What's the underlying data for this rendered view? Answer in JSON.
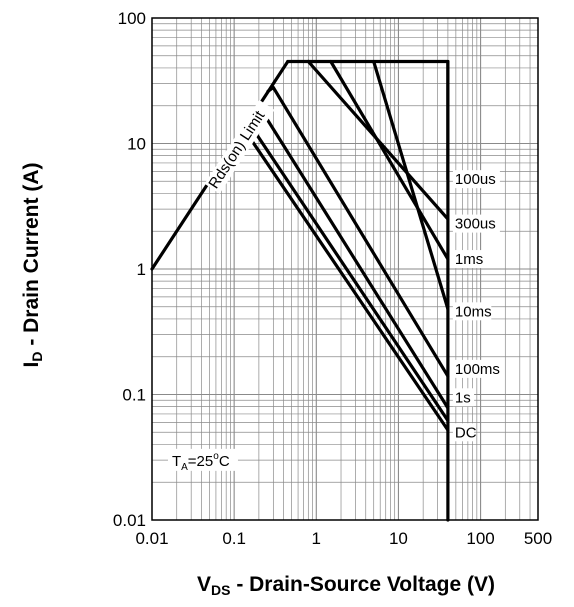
{
  "chart_data": {
    "type": "line",
    "xscale": "log",
    "yscale": "log",
    "xlim": [
      0.01,
      500
    ],
    "ylim": [
      0.01,
      100
    ],
    "grid": true,
    "x_ticks": [
      {
        "value": 0.01,
        "label": "0.01"
      },
      {
        "value": 0.1,
        "label": "0.1"
      },
      {
        "value": 1,
        "label": "1"
      },
      {
        "value": 10,
        "label": "10"
      },
      {
        "value": 100,
        "label": "100"
      },
      {
        "value": 500,
        "label": "500"
      }
    ],
    "y_ticks": [
      {
        "value": 0.01,
        "label": "0.01"
      },
      {
        "value": 0.1,
        "label": "0.1"
      },
      {
        "value": 1,
        "label": "1"
      },
      {
        "value": 10,
        "label": "10"
      },
      {
        "value": 100,
        "label": "100"
      }
    ],
    "xlabel": {
      "main": "V",
      "sub": "DS",
      "rest": " - Drain-Source Voltage (V)"
    },
    "ylabel": {
      "main": "I",
      "sub": "D",
      "rest": " - Drain Current (A)"
    },
    "limit_line": {
      "label": "Rds(on) Limit",
      "x": [
        0.01,
        0.45
      ],
      "y": [
        1,
        45
      ]
    },
    "series": [
      {
        "name": "100us",
        "x": [
          0.45,
          40,
          40
        ],
        "y": [
          45,
          45,
          5.2
        ]
      },
      {
        "name": "300us",
        "x": [
          0.8,
          40
        ],
        "y": [
          45,
          2.5
        ]
      },
      {
        "name": "1ms",
        "x": [
          1.5,
          40
        ],
        "y": [
          45,
          1.2
        ]
      },
      {
        "name": "10ms",
        "x": [
          5,
          40
        ],
        "y": [
          45,
          0.48
        ]
      },
      {
        "name": "100ms",
        "x": [
          0.3,
          40
        ],
        "y": [
          28,
          0.14
        ]
      },
      {
        "name": "1s",
        "x": [
          0.22,
          40
        ],
        "y": [
          18,
          0.078
        ]
      },
      {
        "name": "DC",
        "x": [
          0.17,
          40
        ],
        "y": [
          13,
          0.062
        ]
      },
      {
        "name": "",
        "x": [
          0.15,
          40
        ],
        "y": [
          11.5,
          0.052
        ]
      }
    ],
    "vertical_limit": {
      "x": 40,
      "y": [
        0.01,
        45
      ]
    },
    "annotation": {
      "main": "T",
      "sub": "A",
      "rest": "=25",
      "sup": "o",
      "tail": "C"
    }
  }
}
